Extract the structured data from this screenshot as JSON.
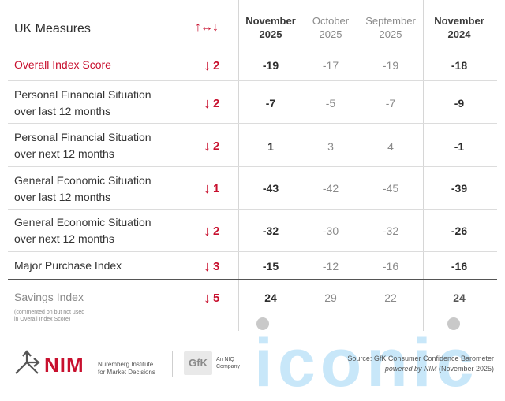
{
  "header": {
    "title": "UK Measures",
    "change_symbol": "↑↔↓",
    "columns": [
      {
        "line1": "November",
        "line2": "2025",
        "bold": true
      },
      {
        "line1": "October",
        "line2": "2025",
        "bold": false
      },
      {
        "line1": "September",
        "line2": "2025",
        "bold": false
      },
      {
        "line1": "November",
        "line2": "2024",
        "bold": true
      }
    ]
  },
  "rows": [
    {
      "label1": "Overall Index Score",
      "label2": "",
      "arrow": "↓",
      "change": "2",
      "values": [
        "-19",
        "-17",
        "-19",
        "-18"
      ]
    },
    {
      "label1": "Personal Financial Situation",
      "label2": "over last 12 months",
      "arrow": "↓",
      "change": "2",
      "values": [
        "-7",
        "-5",
        "-7",
        "-9"
      ]
    },
    {
      "label1": "Personal Financial Situation",
      "label2": "over next 12 months",
      "arrow": "↓",
      "change": "2",
      "values": [
        "1",
        "3",
        "4",
        "-1"
      ]
    },
    {
      "label1": "General Economic Situation",
      "label2": "over last 12 months",
      "arrow": "↓",
      "change": "1",
      "values": [
        "-43",
        "-42",
        "-45",
        "-39"
      ]
    },
    {
      "label1": "General Economic Situation",
      "label2": "over next 12 months",
      "arrow": "↓",
      "change": "2",
      "values": [
        "-32",
        "-30",
        "-32",
        "-26"
      ]
    },
    {
      "label1": "Major Purchase Index",
      "label2": "",
      "arrow": "↓",
      "change": "3",
      "values": [
        "-15",
        "-12",
        "-16",
        "-16"
      ]
    },
    {
      "label1": "Savings Index",
      "label2": "",
      "arrow": "↓",
      "change": "5",
      "values": [
        "24",
        "29",
        "22",
        "24"
      ]
    }
  ],
  "savings_note": {
    "line1": "(commented on but not used",
    "line2": "in Overall Index Score)"
  },
  "footer": {
    "nim_brand": "NIM",
    "nim_name_line1": "Nuremberg Institute",
    "nim_name_line2": "for Market Decisions",
    "gfk_brand": "GfK",
    "gfk_tag_line1": "An NIQ",
    "gfk_tag_line2": "Company",
    "watermark": "iconic",
    "source_line1": "Source: GfK Consumer Confidence Barometer",
    "source_line2_italic": "powered by NIM",
    "source_line2_rest": " (November 2025)"
  },
  "colors": {
    "accent_red": "#c8102e",
    "muted_text": "#8a8a8a",
    "watermark": "#bfe3f8"
  }
}
